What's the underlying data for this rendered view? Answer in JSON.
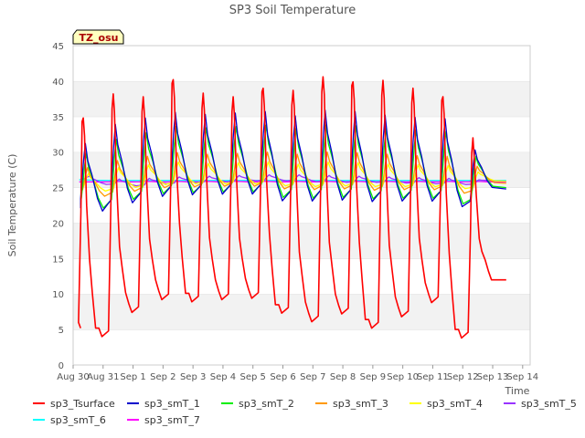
{
  "chart_data": {
    "type": "line",
    "title": "SP3 Soil Temperature",
    "ylabel": "Soil Temperature (C)",
    "xlabel": "Time",
    "badge": "TZ_osu",
    "ylim": [
      0,
      45
    ],
    "yticks": [
      0,
      5,
      10,
      15,
      20,
      25,
      30,
      35,
      40,
      45
    ],
    "xlim": [
      0,
      15.25
    ],
    "xtick_positions": [
      0,
      1,
      2,
      3,
      4,
      5,
      6,
      7,
      8,
      9,
      10,
      11,
      12,
      13,
      14,
      15
    ],
    "xtick_labels": [
      "Aug 30",
      "Aug 31",
      "Sep 1",
      "Sep 2",
      "Sep 3",
      "Sep 4",
      "Sep 5",
      "Sep 6",
      "Sep 7",
      "Sep 8",
      "Sep 9",
      "Sep 10",
      "Sep 11",
      "Sep 12",
      "Sep 13",
      "Sep 14"
    ],
    "grid": "horizontal bands",
    "legend_position": "bottom",
    "x_start": 0.25,
    "x_end": 14.45,
    "series": [
      {
        "name": "sp3_Tsurface",
        "color": "#ff0000",
        "peaks": [
          34.8,
          38.2,
          37.8,
          40.2,
          38.3,
          37.8,
          39.0,
          38.7,
          40.6,
          39.9,
          40.1,
          39.0,
          37.8,
          32.0
        ],
        "troughs": [
          5.2,
          4.0,
          7.4,
          9.2,
          8.9,
          9.2,
          9.4,
          7.3,
          6.1,
          7.2,
          5.2,
          6.8,
          8.8,
          3.8,
          12.0
        ]
      },
      {
        "name": "sp3_smT_1",
        "color": "#0000cc",
        "peaks": [
          31.2,
          33.9,
          34.8,
          35.6,
          35.3,
          35.5,
          35.7,
          35.1,
          35.9,
          35.7,
          35.2,
          34.9,
          34.7,
          30.3
        ],
        "troughs": [
          22.1,
          21.3,
          22.4,
          23.3,
          23.5,
          23.6,
          23.6,
          22.6,
          22.6,
          22.7,
          22.5,
          22.6,
          22.6,
          21.8,
          24.8
        ]
      },
      {
        "name": "sp3_smT_2",
        "color": "#00ee00",
        "peaks": [
          29.8,
          31.8,
          32.7,
          33.6,
          33.4,
          33.6,
          33.8,
          33.3,
          33.8,
          33.7,
          33.3,
          33.1,
          32.9,
          29.4
        ],
        "troughs": [
          22.6,
          21.8,
          23.0,
          23.8,
          23.9,
          24.0,
          24.0,
          23.2,
          23.1,
          23.2,
          23.0,
          23.1,
          23.1,
          22.3,
          25.0
        ]
      },
      {
        "name": "sp3_smT_3",
        "color": "#ff9900",
        "peaks": [
          27.8,
          28.8,
          29.4,
          29.9,
          29.7,
          29.8,
          30.0,
          29.7,
          30.0,
          29.9,
          29.7,
          29.5,
          29.4,
          28.0
        ],
        "troughs": [
          24.2,
          23.6,
          24.3,
          24.8,
          24.9,
          25.0,
          25.0,
          24.6,
          24.5,
          24.6,
          24.4,
          24.5,
          24.5,
          24.0,
          25.6
        ]
      },
      {
        "name": "sp3_smT_4",
        "color": "#ffff00",
        "peaks": [
          27.0,
          27.8,
          28.2,
          28.6,
          28.4,
          28.5,
          28.6,
          28.3,
          28.6,
          28.5,
          28.3,
          28.2,
          28.1,
          27.2
        ],
        "troughs": [
          24.8,
          24.4,
          24.9,
          25.3,
          25.4,
          25.4,
          25.4,
          25.1,
          25.0,
          25.1,
          25.0,
          25.0,
          25.0,
          24.7,
          25.9
        ]
      },
      {
        "name": "sp3_smT_5",
        "color": "#9933ff",
        "peaks": [
          26.6,
          26.2,
          26.3,
          26.5,
          26.6,
          26.7,
          26.8,
          26.8,
          26.7,
          26.6,
          26.5,
          26.4,
          26.3,
          26.1
        ],
        "troughs": [
          26.2,
          25.4,
          25.2,
          25.5,
          25.7,
          25.8,
          25.9,
          25.9,
          25.8,
          25.7,
          25.7,
          25.6,
          25.5,
          25.4,
          25.9
        ]
      },
      {
        "name": "sp3_smT_6",
        "color": "#00ffff",
        "peaks": [
          26.1,
          26.0,
          26.0,
          26.0,
          26.0,
          26.0,
          26.0,
          26.0,
          26.0,
          26.0,
          26.0,
          26.0,
          26.0,
          26.0
        ],
        "troughs": [
          26.1,
          26.0,
          26.0,
          26.0,
          26.0,
          26.0,
          26.0,
          26.0,
          26.0,
          26.0,
          26.0,
          26.0,
          26.0,
          26.0,
          26.0
        ]
      },
      {
        "name": "sp3_smT_7",
        "color": "#ff00ff",
        "peaks": [
          25.8,
          25.9,
          25.9,
          25.9,
          25.9,
          25.9,
          25.9,
          25.9,
          25.9,
          25.9,
          25.9,
          25.9,
          25.9,
          25.9
        ],
        "troughs": [
          25.8,
          25.8,
          25.8,
          25.8,
          25.8,
          25.8,
          25.8,
          25.8,
          25.8,
          25.8,
          25.8,
          25.8,
          25.8,
          25.8,
          25.8
        ]
      }
    ]
  }
}
